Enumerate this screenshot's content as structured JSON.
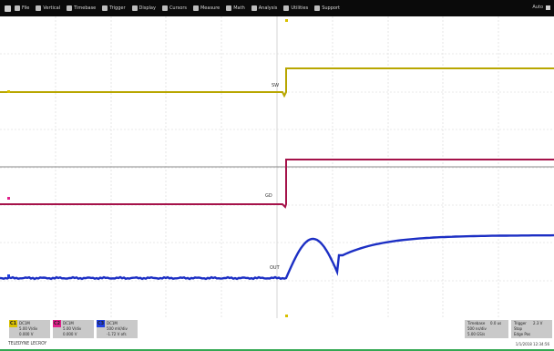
{
  "menu": {
    "items": [
      {
        "label": "File",
        "icon": "file-icon"
      },
      {
        "label": "Vertical",
        "icon": "vertical-icon"
      },
      {
        "label": "Timebase",
        "icon": "timebase-icon"
      },
      {
        "label": "Trigger",
        "icon": "trigger-icon"
      },
      {
        "label": "Display",
        "icon": "display-icon"
      },
      {
        "label": "Cursors",
        "icon": "cursors-icon"
      },
      {
        "label": "Measure",
        "icon": "measure-icon"
      },
      {
        "label": "Math",
        "icon": "math-icon"
      },
      {
        "label": "Analysis",
        "icon": "analysis-icon"
      },
      {
        "label": "Utilities",
        "icon": "utilities-icon"
      },
      {
        "label": "Support",
        "icon": "support-icon"
      }
    ],
    "right_label": "Auto"
  },
  "traces": {
    "yellow": {
      "color": "#b8a600",
      "level_left": 101,
      "level_right": 75,
      "label": "SW"
    },
    "red": {
      "color": "#a5124a",
      "level_left": 224,
      "level_right": 175,
      "label": "GD"
    },
    "blue": {
      "color": "#1c2fc4",
      "level_left": 305,
      "label": "OUT"
    },
    "reference": {
      "color": "#8a8a8a",
      "level": 183
    }
  },
  "channels": [
    {
      "tag": "C1",
      "color": "#d8c000",
      "lines": [
        "DC1M",
        "5.00 V/div",
        "0.000 V"
      ]
    },
    {
      "tag": "C2",
      "color": "#e0208a",
      "lines": [
        "DC1M",
        "5.00 V/div",
        "0.000 V"
      ]
    },
    {
      "tag": "C3",
      "color": "#2040e0",
      "lines": [
        "DC1M",
        "500 mV/div",
        "-1.72 V ofs"
      ]
    }
  ],
  "timebase": {
    "title": "Timebase",
    "value": "0.0 us",
    "scale": "500 ns/div",
    "rate": "5.00 GS/s"
  },
  "trigger": {
    "title": "Trigger",
    "value": "2.3 V",
    "mode": "Stop",
    "edge": "Edge Pos"
  },
  "brand": "TELEDYNE LECROY",
  "datetime": "1/1/2018 12:34:56"
}
